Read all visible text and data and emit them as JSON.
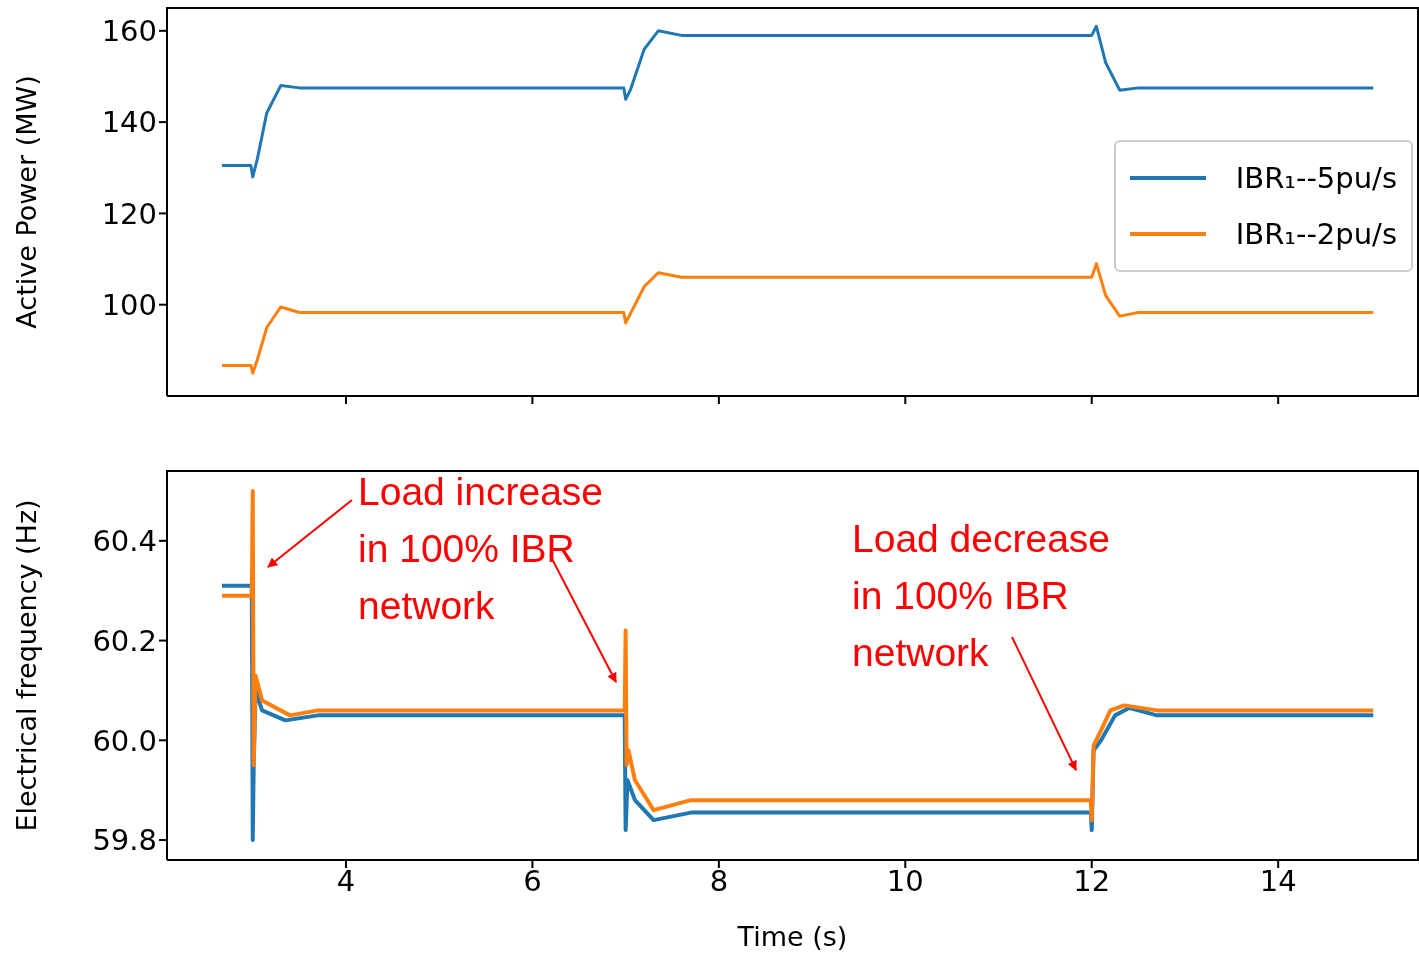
{
  "chart_data": [
    {
      "type": "line",
      "ylabel": "Active Power (MW)",
      "xlim": [
        2.08,
        15.5
      ],
      "xticks": [
        4,
        6,
        8,
        10,
        12,
        14
      ],
      "ylim": [
        80,
        165
      ],
      "yticks": [
        100,
        120,
        140,
        160
      ],
      "tick_labels": "y",
      "legend": "right",
      "marker": "none",
      "line_style": "solid",
      "series": [
        {
          "name": "IBR₁--5pu/s",
          "color": "#1f77b4",
          "x": [
            2.67,
            2.98,
            3.0,
            3.05,
            3.15,
            3.3,
            3.5,
            6.98,
            7.0,
            7.05,
            7.2,
            7.35,
            7.6,
            12.0,
            12.05,
            12.15,
            12.3,
            12.5,
            15.02
          ],
          "values": [
            130.5,
            130.5,
            128,
            132,
            142,
            148,
            147.5,
            147.5,
            145,
            147,
            156,
            160,
            159,
            159,
            161,
            153,
            147,
            147.5,
            147.5
          ]
        },
        {
          "name": "IBR₁--2pu/s",
          "color": "#ff7f0e",
          "x": [
            2.67,
            2.98,
            3.0,
            3.05,
            3.15,
            3.3,
            3.5,
            6.98,
            7.0,
            7.05,
            7.2,
            7.35,
            7.6,
            12.0,
            12.05,
            12.15,
            12.3,
            12.5,
            15.02
          ],
          "values": [
            86.7,
            86.7,
            85,
            88,
            95,
            99.5,
            98.3,
            98.3,
            96,
            98,
            104,
            107,
            106,
            106,
            109,
            102,
            97.5,
            98.3,
            98.3
          ]
        }
      ]
    },
    {
      "type": "line",
      "xlabel": "Time (s)",
      "ylabel": "Electrical frequency (Hz)",
      "xlim": [
        2.08,
        15.5
      ],
      "xticks": [
        4,
        6,
        8,
        10,
        12,
        14
      ],
      "ylim": [
        59.76,
        60.54
      ],
      "yticks": [
        {
          "value": 59.8,
          "label": "59.8"
        },
        {
          "value": 60.0,
          "label": "60.0"
        },
        {
          "value": 60.2,
          "label": "60.2"
        },
        {
          "value": 60.4,
          "label": "60.4"
        }
      ],
      "marker": "none",
      "line_style": "solid",
      "annotations": [
        "Load increase\nin 100% IBR\nnetwork",
        "Load decrease\nin 100% IBR\nnetwork"
      ],
      "series": [
        {
          "color": "#1f77b4",
          "x": [
            2.67,
            2.99,
            3.0,
            3.01,
            3.03,
            3.1,
            3.35,
            3.7,
            6.99,
            7.0,
            7.02,
            7.1,
            7.3,
            7.7,
            11.99,
            12.0,
            12.02,
            12.1,
            12.25,
            12.4,
            12.7,
            15.02
          ],
          "values": [
            60.31,
            60.31,
            59.8,
            59.95,
            60.1,
            60.06,
            60.04,
            60.05,
            60.05,
            59.82,
            59.92,
            59.88,
            59.84,
            59.855,
            59.855,
            59.82,
            59.98,
            60.0,
            60.05,
            60.065,
            60.05,
            60.05
          ]
        },
        {
          "color": "#ff7f0e",
          "x": [
            2.67,
            2.99,
            3.0,
            3.01,
            3.03,
            3.1,
            3.4,
            3.7,
            6.99,
            7.0,
            7.01,
            7.03,
            7.1,
            7.3,
            7.7,
            11.99,
            12.0,
            12.02,
            12.1,
            12.2,
            12.35,
            12.7,
            15.02
          ],
          "values": [
            60.29,
            60.29,
            60.5,
            59.95,
            60.13,
            60.08,
            60.05,
            60.06,
            60.06,
            60.22,
            59.95,
            59.98,
            59.92,
            59.86,
            59.88,
            59.88,
            59.84,
            59.99,
            60.02,
            60.06,
            60.07,
            60.06,
            60.06
          ]
        }
      ]
    }
  ]
}
